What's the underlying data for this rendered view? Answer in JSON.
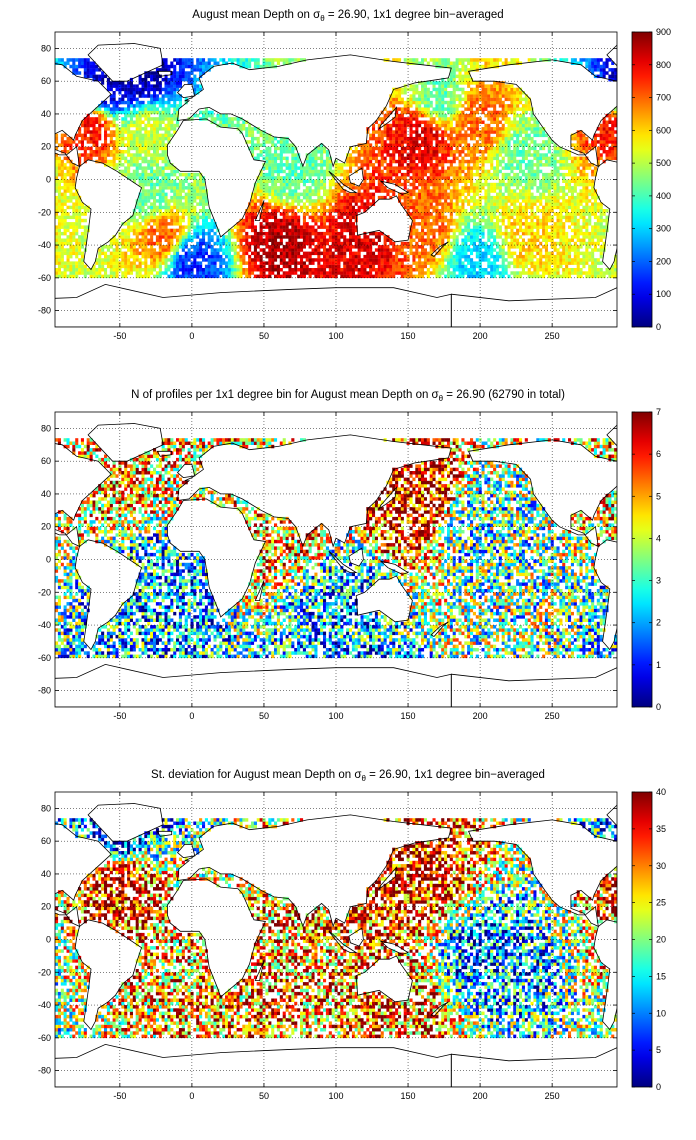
{
  "chart_data": [
    {
      "type": "heatmap",
      "title": "August mean Depth on σ",
      "title_sub": "θ",
      "title_rest": " = 26.90, 1x1 degree bin−averaged",
      "x_ticks": [
        "-50",
        "0",
        "50",
        "100",
        "150",
        "200",
        "250"
      ],
      "y_ticks": [
        "80",
        "60",
        "40",
        "20",
        "0",
        "-20",
        "-40",
        "-60",
        "-80"
      ],
      "xlim": [
        -95,
        295
      ],
      "ylim": [
        -90,
        90
      ],
      "colorbar": {
        "min": 0,
        "max": 900,
        "ticks": [
          "900",
          "800",
          "700",
          "600",
          "500",
          "400",
          "300",
          "200",
          "100",
          "0"
        ]
      },
      "grid": true,
      "regions": [
        {
          "lon": -60,
          "lat": 55,
          "value": 60
        },
        {
          "lon": -35,
          "lat": 62,
          "value": 40
        },
        {
          "lon": -70,
          "lat": 32,
          "value": 780
        },
        {
          "lon": -30,
          "lat": 30,
          "value": 520
        },
        {
          "lon": 160,
          "lat": 28,
          "value": 820
        },
        {
          "lon": 200,
          "lat": 35,
          "value": 700
        },
        {
          "lon": 170,
          "lat": 48,
          "value": 420
        },
        {
          "lon": 230,
          "lat": 15,
          "value": 430
        },
        {
          "lon": 70,
          "lat": 5,
          "value": 420
        },
        {
          "lon": 60,
          "lat": -38,
          "value": 860
        },
        {
          "lon": 120,
          "lat": -35,
          "value": 820
        },
        {
          "lon": 160,
          "lat": -30,
          "value": 700
        },
        {
          "lon": 230,
          "lat": -35,
          "value": 600
        },
        {
          "lon": -20,
          "lat": -35,
          "value": 700
        },
        {
          "lon": -30,
          "lat": -10,
          "value": 420
        },
        {
          "lon": 0,
          "lat": -50,
          "value": 150
        },
        {
          "lon": 200,
          "lat": -50,
          "value": 300
        }
      ]
    },
    {
      "type": "heatmap",
      "title": "N of profiles per 1x1 degree bin for August mean Depth on σ",
      "title_sub": "θ",
      "title_rest": " = 26.90 (62790 in total)",
      "x_ticks": [
        "-50",
        "0",
        "50",
        "100",
        "150",
        "200",
        "250"
      ],
      "y_ticks": [
        "80",
        "60",
        "40",
        "20",
        "0",
        "-20",
        "-40",
        "-60",
        "-80"
      ],
      "xlim": [
        -95,
        295
      ],
      "ylim": [
        -90,
        90
      ],
      "colorbar": {
        "min": 0,
        "max": 7,
        "ticks": [
          "7",
          "6",
          "5",
          "4",
          "3",
          "2",
          "1",
          "0"
        ]
      },
      "grid": true,
      "regions": [
        {
          "lon": 155,
          "lat": 38,
          "value": 6.5
        },
        {
          "lon": -50,
          "lat": 55,
          "value": 5
        },
        {
          "lon": 60,
          "lat": 15,
          "value": 5
        },
        {
          "lon": 200,
          "lat": 20,
          "value": 3
        },
        {
          "lon": 100,
          "lat": -30,
          "value": 2
        },
        {
          "lon": -20,
          "lat": -20,
          "value": 2
        }
      ]
    },
    {
      "type": "heatmap",
      "title": "St. deviation for August mean Depth on σ",
      "title_sub": "θ",
      "title_rest": " = 26.90, 1x1 degree bin−averaged",
      "x_ticks": [
        "-50",
        "0",
        "50",
        "100",
        "150",
        "200",
        "250"
      ],
      "y_ticks": [
        "80",
        "60",
        "40",
        "20",
        "0",
        "-20",
        "-40",
        "-60",
        "-80"
      ],
      "xlim": [
        -95,
        295
      ],
      "ylim": [
        -90,
        90
      ],
      "colorbar": {
        "min": 0,
        "max": 40,
        "ticks": [
          "40",
          "35",
          "30",
          "25",
          "20",
          "15",
          "10",
          "5",
          "0"
        ]
      },
      "grid": true,
      "regions": [
        {
          "lon": -50,
          "lat": 40,
          "value": 38
        },
        {
          "lon": 160,
          "lat": 35,
          "value": 36
        },
        {
          "lon": 60,
          "lat": -40,
          "value": 30
        },
        {
          "lon": 150,
          "lat": -45,
          "value": 32
        },
        {
          "lon": 200,
          "lat": -10,
          "value": 10
        },
        {
          "lon": -50,
          "lat": 60,
          "value": 4
        }
      ]
    }
  ]
}
